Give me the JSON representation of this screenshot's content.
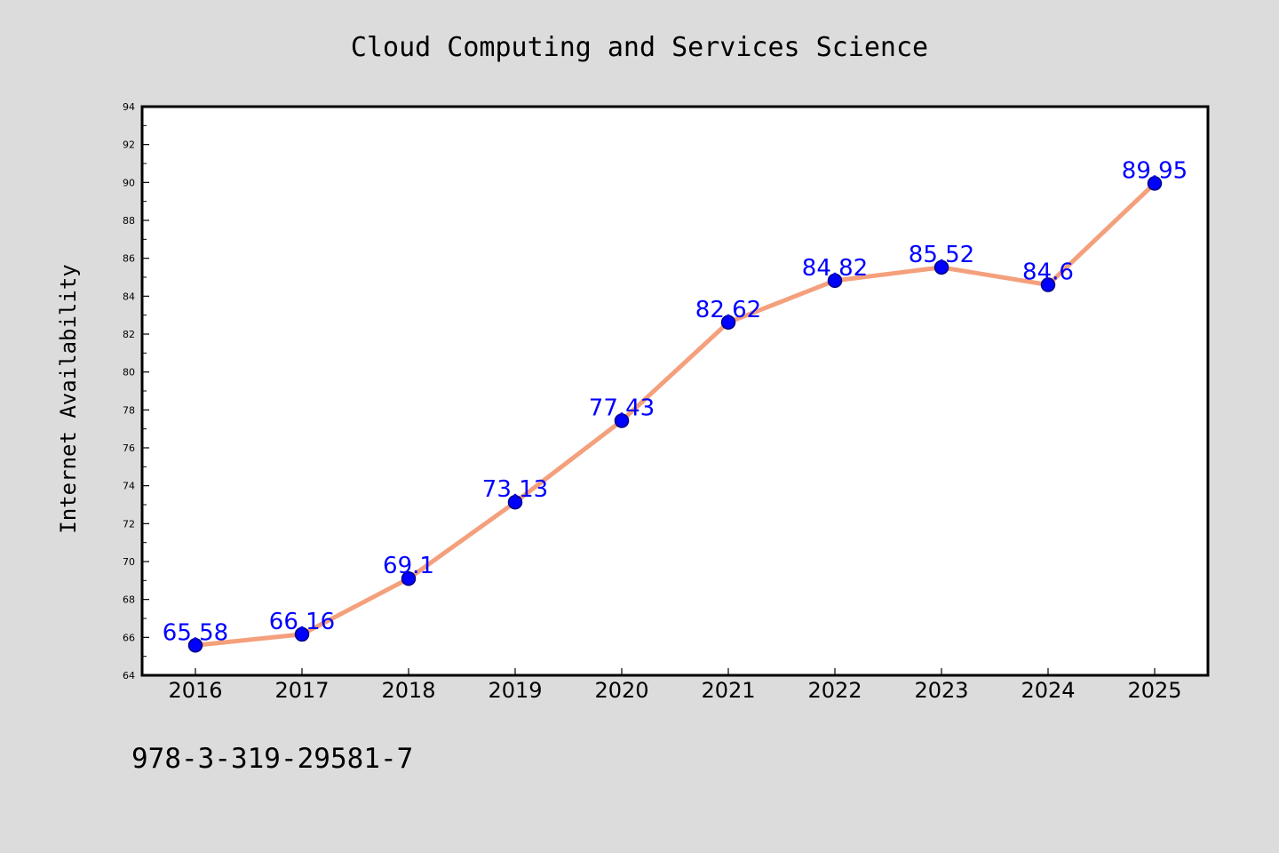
{
  "chart_data": {
    "type": "line",
    "title": "Cloud Computing and Services Science",
    "xlabel": "",
    "ylabel": "Internet Availability",
    "categories": [
      "2016",
      "2017",
      "2018",
      "2019",
      "2020",
      "2021",
      "2022",
      "2023",
      "2024",
      "2025"
    ],
    "series": [
      {
        "values": [
          65.58,
          66.16,
          69.1,
          73.13,
          77.43,
          82.62,
          84.82,
          85.52,
          84.6,
          89.95
        ],
        "data_labels": [
          "65.58",
          "66.16",
          "69.1",
          "73.13",
          "77.43",
          "82.62",
          "84.82",
          "85.52",
          "84.6",
          "89.95"
        ]
      }
    ],
    "ylim": [
      64,
      94
    ],
    "yticks": [
      64,
      66,
      68,
      70,
      72,
      74,
      76,
      78,
      80,
      82,
      84,
      86,
      88,
      90,
      92,
      94
    ],
    "grid": false,
    "legend": "none",
    "colors": {
      "line": "#f4a07c",
      "marker": "#0000ff",
      "marker_edge": "#000080",
      "data_label": "#0000ff",
      "plot_background": "#ffffff",
      "figure_background": "#dcdcdc"
    }
  },
  "footer": {
    "isbn": "978-3-319-29581-7"
  }
}
